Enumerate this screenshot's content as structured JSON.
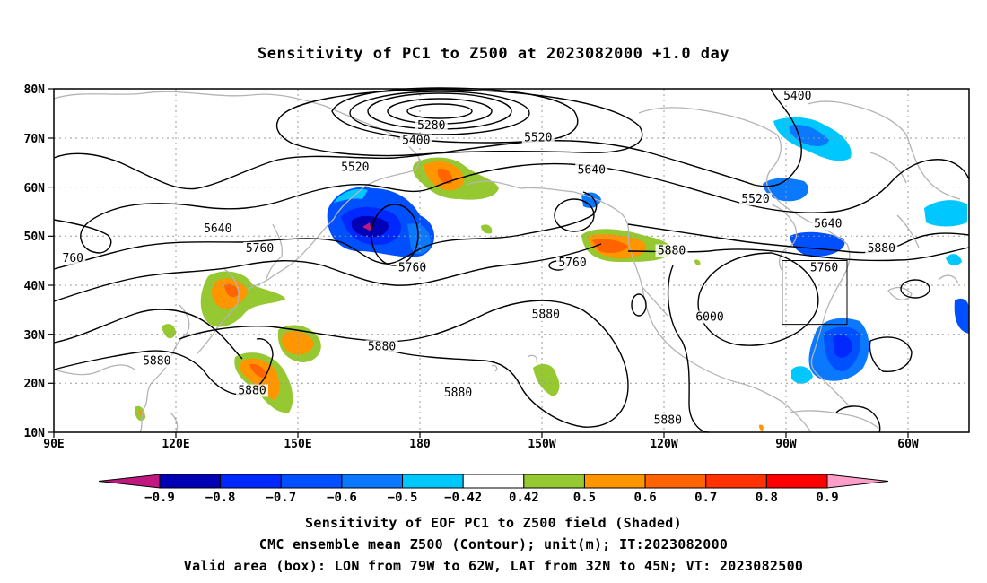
{
  "title": "Sensitivity of PC1 to Z500 at 2023082000 +1.0 day",
  "axes": {
    "lat_labels": [
      "80N",
      "70N",
      "60N",
      "50N",
      "40N",
      "30N",
      "20N",
      "10N"
    ],
    "lon_labels": [
      "90E",
      "120E",
      "150E",
      "180",
      "150W",
      "120W",
      "90W",
      "60W"
    ]
  },
  "contour_labels": [
    {
      "text": "5400",
      "lat": 78.5,
      "lon": -75
    },
    {
      "text": "5280",
      "lat": 72.5,
      "lon": -171
    },
    {
      "text": "5400",
      "lat": 69.5,
      "lon": -175
    },
    {
      "text": "5520",
      "lat": 70,
      "lon": -143
    },
    {
      "text": "5520",
      "lat": 64,
      "lon": 169
    },
    {
      "text": "5640",
      "lat": 63.5,
      "lon": -129
    },
    {
      "text": "5520",
      "lat": 57.5,
      "lon": -86
    },
    {
      "text": "5640",
      "lat": 52.5,
      "lon": -67
    },
    {
      "text": "5640",
      "lat": 51.5,
      "lon": 133
    },
    {
      "text": "5760",
      "lat": 47.5,
      "lon": 144
    },
    {
      "text": "760",
      "lat": 45.5,
      "lon": 95
    },
    {
      "text": "5760",
      "lat": 43.5,
      "lon": -176
    },
    {
      "text": "5760",
      "lat": 44.5,
      "lon": -134
    },
    {
      "text": "5880",
      "lat": 47,
      "lon": -108
    },
    {
      "text": "5760",
      "lat": 43.5,
      "lon": -68
    },
    {
      "text": "5880",
      "lat": 47.5,
      "lon": -53
    },
    {
      "text": "6000",
      "lat": 33.5,
      "lon": -98
    },
    {
      "text": "5880",
      "lat": 34,
      "lon": -141
    },
    {
      "text": "5880",
      "lat": 27.5,
      "lon": 176
    },
    {
      "text": "5880",
      "lat": 24.5,
      "lon": 117
    },
    {
      "text": "5880",
      "lat": 18.5,
      "lon": 142
    },
    {
      "text": "5880",
      "lat": 18,
      "lon": -164
    },
    {
      "text": "5880",
      "lat": 12.5,
      "lon": -109
    }
  ],
  "valid_box": {
    "lon_w": -79,
    "lon_e": -62,
    "lat_s": 32,
    "lat_n": 45
  },
  "colorbar": {
    "labels": [
      "-0.9",
      "-0.8",
      "-0.7",
      "-0.6",
      "-0.5",
      "-0.42",
      "0.42",
      "0.5",
      "0.6",
      "0.7",
      "0.8",
      "0.9"
    ],
    "colors": [
      "#0000b4",
      "#0028ff",
      "#0050ff",
      "#0a78ff",
      "#00c8ff",
      "#ffffff",
      "#96c832",
      "#ff9600",
      "#ff6400",
      "#ff3200",
      "#ff0000"
    ],
    "low_color": "#c0187e",
    "high_color": "#ff9ec8"
  },
  "captions": {
    "line1": "Sensitivity of EOF PC1 to Z500 field (Shaded)",
    "line2": "CMC ensemble mean Z500 (Contour); unit(m); IT:2023082000",
    "line3": "Valid area (box): LON from 79W to 62W, LAT from 32N to 45N; VT: 2023082500"
  }
}
